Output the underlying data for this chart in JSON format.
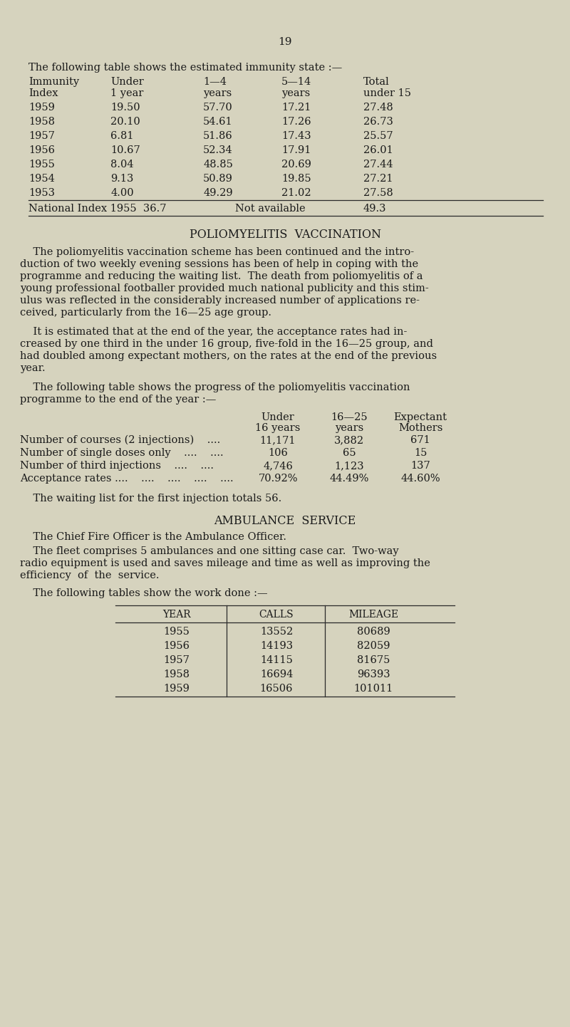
{
  "bg_color": "#d6d3be",
  "text_color": "#1a1a1a",
  "page_number": "19",
  "intro_text": "The following table shows the estimated immunity state :—",
  "immunity_headers_line1": [
    "Immunity",
    "Under",
    "1—4",
    "5—14",
    "Total"
  ],
  "immunity_headers_line2": [
    "Index",
    "1 year",
    "years",
    "years",
    "under 15"
  ],
  "immunity_rows": [
    [
      "1959",
      "19.50",
      "57.70",
      "17.21",
      "27.48"
    ],
    [
      "1958",
      "20.10",
      "54.61",
      "17.26",
      "26.73"
    ],
    [
      "1957",
      "6.81",
      "51.86",
      "17.43",
      "25.57"
    ],
    [
      "1956",
      "10.67",
      "52.34",
      "17.91",
      "26.01"
    ],
    [
      "1955",
      "8.04",
      "48.85",
      "20.69",
      "27.44"
    ],
    [
      "1954",
      "9.13",
      "50.89",
      "19.85",
      "27.21"
    ],
    [
      "1953",
      "4.00",
      "49.29",
      "21.02",
      "27.58"
    ]
  ],
  "national_col0": "National Index 1955  36.7",
  "national_col2": "Not available",
  "national_col4": "49.3",
  "polio_heading": "POLIOMYELITIS  VACCINATION",
  "polio_para1_lines": [
    "    The poliomyelitis vaccination scheme has been continued and the intro-",
    "duction of two weekly evening sessions has been of help in coping with the",
    "programme and reducing the waiting list.  The death from poliomyelitis of a",
    "young professional footballer provided much national publicity and this stim-",
    "ulus was reflected in the considerably increased number of applications re-",
    "ceived, particularly from the 16—25 age group."
  ],
  "polio_para2_lines": [
    "    It is estimated that at the end of the year, the acceptance rates had in-",
    "creased by one third in the under 16 group, five-fold in the 16—25 group, and",
    "had doubled among expectant mothers, on the rates at the end of the previous",
    "year."
  ],
  "polio_para3_lines": [
    "    The following table shows the progress of the poliomyelitis vaccination",
    "programme to the end of the year :—"
  ],
  "polio_table_hdr1": [
    "",
    "Under",
    "16—25",
    "Expectant"
  ],
  "polio_table_hdr2": [
    "",
    "16 years",
    "years",
    "Mothers"
  ],
  "polio_table_rows": [
    [
      "Number of courses (2 injections)    ....",
      "11,171",
      "3,882",
      "671"
    ],
    [
      "Number of single doses only    ....    ....",
      "106",
      "65",
      "15"
    ],
    [
      "Number of third injections    ....    ....",
      "4,746",
      "1,123",
      "137"
    ],
    [
      "Acceptance rates ....    ....    ....    ....    ....",
      "70.92%",
      "44.49%",
      "44.60%"
    ]
  ],
  "waiting_list_text": "    The waiting list for the first injection totals 56.",
  "ambulance_heading": "AMBULANCE  SERVICE",
  "ambulance_para1": "    The Chief Fire Officer is the Ambulance Officer.",
  "ambulance_para2_lines": [
    "    The fleet comprises 5 ambulances and one sitting case car.  Two-way",
    "radio equipment is used and saves mileage and time as well as improving the",
    "efficiency  of  the  service."
  ],
  "ambulance_para3": "    The following tables show the work done :—",
  "ambulance_table_hdrs": [
    "Year",
    "Calls",
    "Mileage"
  ],
  "ambulance_rows": [
    [
      "1955",
      "13552",
      "80689"
    ],
    [
      "1956",
      "14193",
      "82059"
    ],
    [
      "1957",
      "14115",
      "81675"
    ],
    [
      "1958",
      "16694",
      "96393"
    ],
    [
      "1959",
      "16506",
      "101011"
    ]
  ]
}
